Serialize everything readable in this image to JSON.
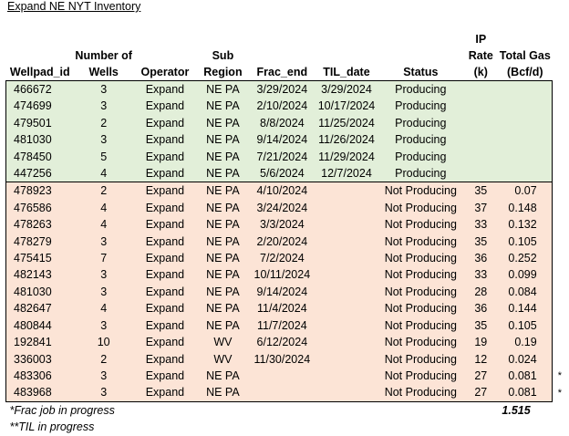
{
  "title": "Expand NE NYT Inventory",
  "headers": {
    "wellpad": "Wellpad_id",
    "wells_line1": "Number of",
    "wells_line2": "Wells",
    "operator": "Operator",
    "subregion": "Sub Region",
    "frac_end": "Frac_end",
    "til_date": "TIL_date",
    "status": "Status",
    "ip_line1": "IP Rate",
    "ip_line2": "(k)",
    "gas_line1": "Total Gas",
    "gas_line2": "(Bcf/d)"
  },
  "rows": [
    {
      "id": "466672",
      "wells": "3",
      "op": "Expand",
      "sub": "NE PA",
      "frac": "3/29/2024",
      "til": "3/29/2024",
      "status": "Producing",
      "ip": "",
      "gas": "",
      "mark": ""
    },
    {
      "id": "474699",
      "wells": "3",
      "op": "Expand",
      "sub": "NE PA",
      "frac": "2/10/2024",
      "til": "10/17/2024",
      "status": "Producing",
      "ip": "",
      "gas": "",
      "mark": ""
    },
    {
      "id": "479501",
      "wells": "2",
      "op": "Expand",
      "sub": "NE PA",
      "frac": "8/8/2024",
      "til": "11/25/2024",
      "status": "Producing",
      "ip": "",
      "gas": "",
      "mark": ""
    },
    {
      "id": "481030",
      "wells": "3",
      "op": "Expand",
      "sub": "NE PA",
      "frac": "9/14/2024",
      "til": "11/26/2024",
      "status": "Producing",
      "ip": "",
      "gas": "",
      "mark": ""
    },
    {
      "id": "478450",
      "wells": "5",
      "op": "Expand",
      "sub": "NE PA",
      "frac": "7/21/2024",
      "til": "11/29/2024",
      "status": "Producing",
      "ip": "",
      "gas": "",
      "mark": ""
    },
    {
      "id": "447256",
      "wells": "4",
      "op": "Expand",
      "sub": "NE PA",
      "frac": "5/6/2024",
      "til": "12/7/2024",
      "status": "Producing",
      "ip": "",
      "gas": "",
      "mark": ""
    },
    {
      "id": "478923",
      "wells": "2",
      "op": "Expand",
      "sub": "NE PA",
      "frac": "4/10/2024",
      "til": "",
      "status": "Not Producing",
      "ip": "35",
      "gas": "0.07",
      "mark": ""
    },
    {
      "id": "476586",
      "wells": "4",
      "op": "Expand",
      "sub": "NE PA",
      "frac": "3/24/2024",
      "til": "",
      "status": "Not Producing",
      "ip": "37",
      "gas": "0.148",
      "mark": ""
    },
    {
      "id": "478263",
      "wells": "4",
      "op": "Expand",
      "sub": "NE PA",
      "frac": "3/3/2024",
      "til": "",
      "status": "Not Producing",
      "ip": "33",
      "gas": "0.132",
      "mark": ""
    },
    {
      "id": "478279",
      "wells": "3",
      "op": "Expand",
      "sub": "NE PA",
      "frac": "2/20/2024",
      "til": "",
      "status": "Not Producing",
      "ip": "35",
      "gas": "0.105",
      "mark": ""
    },
    {
      "id": "475415",
      "wells": "7",
      "op": "Expand",
      "sub": "NE PA",
      "frac": "7/2/2024",
      "til": "",
      "status": "Not Producing",
      "ip": "36",
      "gas": "0.252",
      "mark": ""
    },
    {
      "id": "482143",
      "wells": "3",
      "op": "Expand",
      "sub": "NE PA",
      "frac": "10/11/2024",
      "til": "",
      "status": "Not Producing",
      "ip": "33",
      "gas": "0.099",
      "mark": ""
    },
    {
      "id": "481030",
      "wells": "3",
      "op": "Expand",
      "sub": "NE PA",
      "frac": "9/14/2024",
      "til": "",
      "status": "Not Producing",
      "ip": "28",
      "gas": "0.084",
      "mark": ""
    },
    {
      "id": "482647",
      "wells": "4",
      "op": "Expand",
      "sub": "NE PA",
      "frac": "11/4/2024",
      "til": "",
      "status": "Not Producing",
      "ip": "36",
      "gas": "0.144",
      "mark": ""
    },
    {
      "id": "480844",
      "wells": "3",
      "op": "Expand",
      "sub": "NE PA",
      "frac": "11/7/2024",
      "til": "",
      "status": "Not Producing",
      "ip": "35",
      "gas": "0.105",
      "mark": ""
    },
    {
      "id": "192841",
      "wells": "10",
      "op": "Expand",
      "sub": "WV",
      "frac": "6/12/2024",
      "til": "",
      "status": "Not Producing",
      "ip": "19",
      "gas": "0.19",
      "mark": ""
    },
    {
      "id": "336003",
      "wells": "2",
      "op": "Expand",
      "sub": "WV",
      "frac": "11/30/2024",
      "til": "",
      "status": "Not Producing",
      "ip": "12",
      "gas": "0.024",
      "mark": ""
    },
    {
      "id": "483306",
      "wells": "3",
      "op": "Expand",
      "sub": "NE PA",
      "frac": "",
      "til": "",
      "status": "Not Producing",
      "ip": "27",
      "gas": "0.081",
      "mark": "*"
    },
    {
      "id": "483968",
      "wells": "3",
      "op": "Expand",
      "sub": "NE PA",
      "frac": "",
      "til": "",
      "status": "Not Producing",
      "ip": "27",
      "gas": "0.081",
      "mark": "*"
    }
  ],
  "footnotes": {
    "frac": "*Frac job in progress",
    "til": "**TIL in progress"
  },
  "total_gas": "1.515",
  "colors": {
    "producing_fill": "#e2efd9",
    "not_producing_fill": "#fce4d6"
  }
}
